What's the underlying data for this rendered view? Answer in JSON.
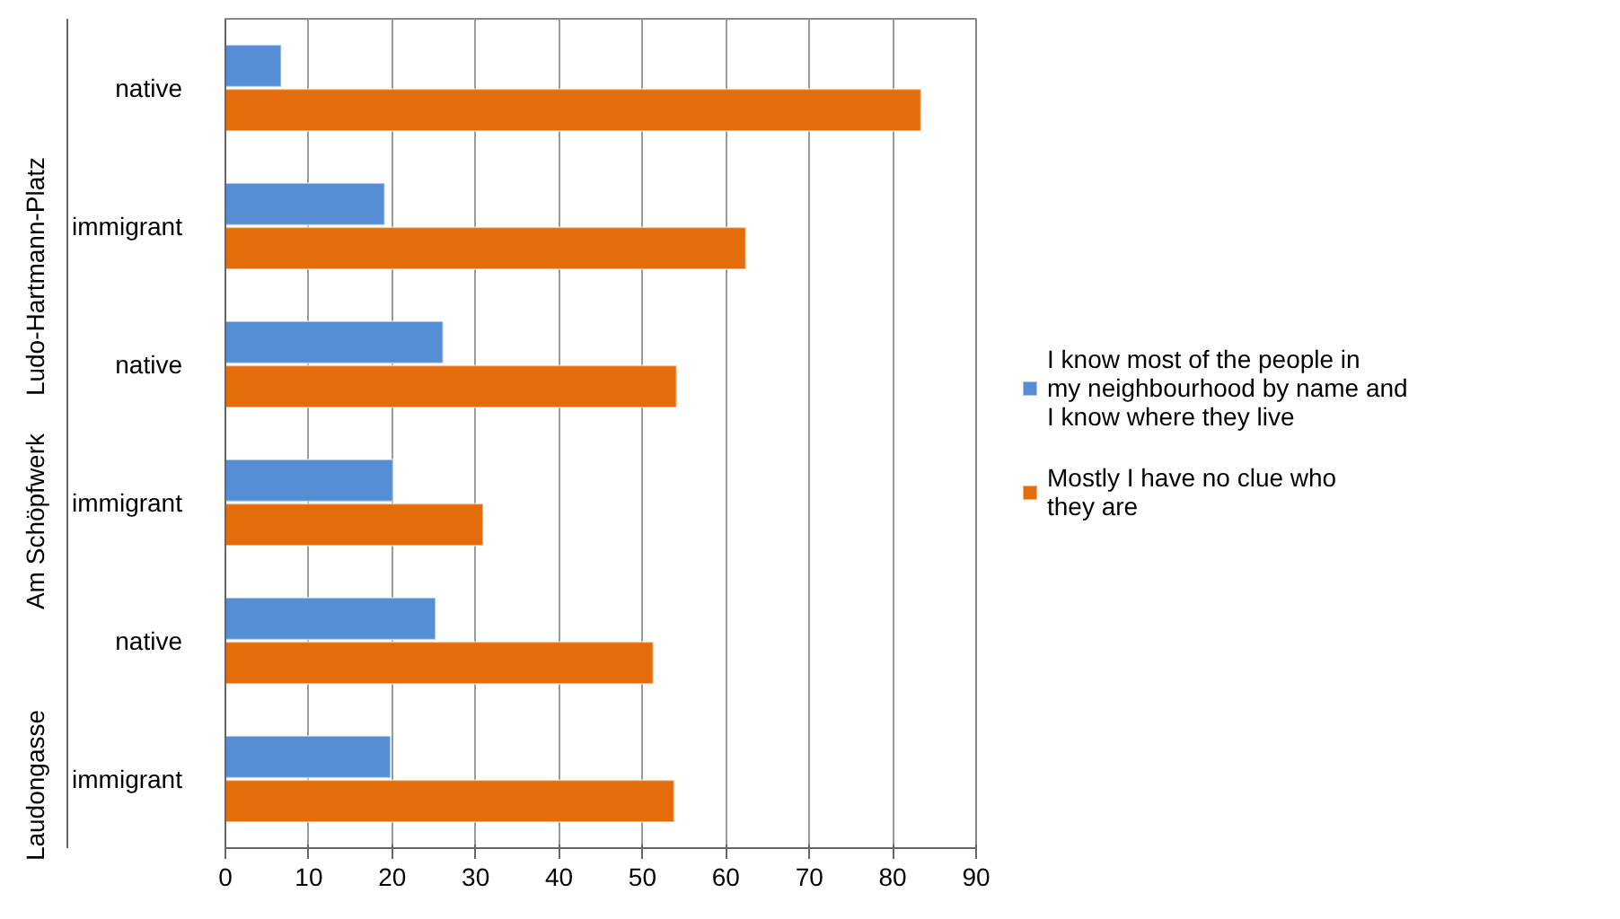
{
  "chart_data": {
    "type": "bar",
    "orientation": "horizontal",
    "categories": [
      "native",
      "immigrant",
      "native",
      "immigrant",
      "native",
      "immigrant"
    ],
    "annotations": [
      "Ludo-Hartmann-Platz",
      "Am Schöpfwerk",
      "Laudongasse"
    ],
    "series": [
      {
        "name": "I know most of the people in my neighbourhood by name and I know where they live",
        "color": "#558ed5",
        "values": [
          6.7,
          19.1,
          26.1,
          20.1,
          25.2,
          19.8
        ]
      },
      {
        "name": "Mostly I have no clue who they are",
        "color": "#e46c0a",
        "values": [
          83.4,
          62.4,
          54.1,
          30.9,
          51.3,
          53.8
        ]
      }
    ],
    "xlim": [
      0,
      90
    ],
    "xticks": [
      0,
      10,
      20,
      30,
      40,
      50,
      60,
      70,
      80,
      90
    ],
    "grid": "x",
    "legend": "right"
  }
}
